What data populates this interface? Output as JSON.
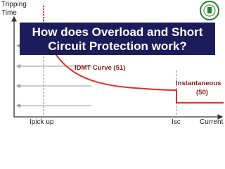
{
  "y_axis_label": [
    "Tripping",
    "Time"
  ],
  "x_axis_label": "Current",
  "x_marks": [
    "Ipick up",
    "Isc"
  ],
  "curves": [
    "IDMT Curve (51)",
    [
      "Instantaneous",
      "(50)"
    ]
  ],
  "title": [
    "How does Overload and Short",
    "Circuit Protection work?"
  ]
}
